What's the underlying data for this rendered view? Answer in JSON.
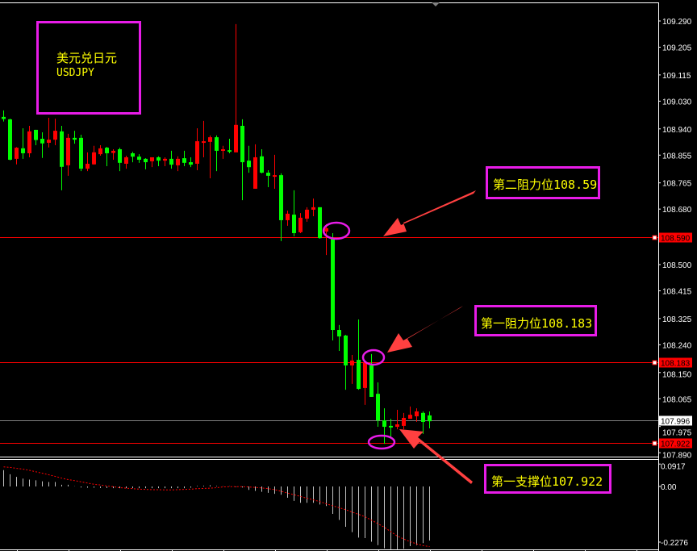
{
  "symbol": {
    "name_cn": "美元兑日元",
    "name": "USDJPY"
  },
  "colors": {
    "bull": "#ff0000",
    "bear": "#00ff00",
    "level_line": "#ff0000",
    "current_line": "#808080",
    "annotation_border": "#e81ce8",
    "annotation_text": "#ffff00",
    "arrow": "#ff4040",
    "axis_text": "#ffffff"
  },
  "price_axis": {
    "ticks": [
      109.29,
      109.205,
      109.115,
      109.03,
      108.94,
      108.855,
      108.765,
      108.68,
      108.5,
      108.415,
      108.325,
      108.24,
      108.15,
      108.065,
      107.975,
      107.89
    ],
    "tick_labels": [
      "109.290",
      "109.205",
      "109.115",
      "109.030",
      "108.940",
      "108.855",
      "108.765",
      "108.680",
      "108.500",
      "108.415",
      "108.325",
      "108.240",
      "108.150",
      "108.065",
      "107.975",
      "107.890"
    ],
    "current_price": "107.996",
    "level_tags": [
      "108.590",
      "108.183",
      "107.922"
    ]
  },
  "levels": [
    {
      "price": 108.59,
      "label": "第二阻力位108.59"
    },
    {
      "price": 108.183,
      "label": "第一阻力位108.183"
    },
    {
      "price": 107.922,
      "label": "第一支撑位107.922"
    }
  ],
  "current": 107.996,
  "candles_ohlc": [
    [
      108.979,
      109.0,
      108.964,
      108.972
    ],
    [
      108.971,
      108.973,
      108.838,
      108.84
    ],
    [
      108.843,
      108.881,
      108.825,
      108.879
    ],
    [
      108.877,
      108.942,
      108.843,
      108.861
    ],
    [
      108.861,
      108.95,
      108.848,
      108.932
    ],
    [
      108.937,
      108.937,
      108.887,
      108.904
    ],
    [
      108.908,
      108.929,
      108.846,
      108.893
    ],
    [
      108.895,
      108.976,
      108.88,
      108.905
    ],
    [
      108.905,
      108.973,
      108.887,
      108.934
    ],
    [
      108.932,
      108.95,
      108.741,
      108.817
    ],
    [
      108.822,
      108.924,
      108.788,
      108.911
    ],
    [
      108.911,
      108.934,
      108.892,
      108.905
    ],
    [
      108.911,
      108.921,
      108.803,
      108.811
    ],
    [
      108.811,
      108.864,
      108.803,
      108.827
    ],
    [
      108.825,
      108.885,
      108.824,
      108.864
    ],
    [
      108.858,
      108.887,
      108.853,
      108.877
    ],
    [
      108.879,
      108.882,
      108.819,
      108.861
    ],
    [
      108.862,
      108.874,
      108.84,
      108.869
    ],
    [
      108.874,
      108.879,
      108.803,
      108.83
    ],
    [
      108.827,
      108.853,
      108.811,
      108.848
    ],
    [
      108.861,
      108.866,
      108.832,
      108.85
    ],
    [
      108.85,
      108.858,
      108.83,
      108.84
    ],
    [
      108.843,
      108.845,
      108.809,
      108.832
    ],
    [
      108.835,
      108.848,
      108.816,
      108.848
    ],
    [
      108.848,
      108.851,
      108.819,
      108.837
    ],
    [
      108.837,
      108.848,
      108.819,
      108.843
    ],
    [
      108.843,
      108.869,
      108.811,
      108.824
    ],
    [
      108.822,
      108.851,
      108.803,
      108.843
    ],
    [
      108.845,
      108.869,
      108.819,
      108.83
    ],
    [
      108.832,
      108.848,
      108.816,
      108.824
    ],
    [
      108.827,
      108.942,
      108.806,
      108.9
    ],
    [
      108.895,
      108.966,
      108.848,
      108.9
    ],
    [
      108.898,
      108.919,
      108.78,
      108.913
    ],
    [
      108.913,
      108.919,
      108.803,
      108.869
    ],
    [
      108.869,
      108.885,
      108.843,
      108.874
    ],
    [
      108.871,
      108.908,
      108.861,
      108.866
    ],
    [
      108.864,
      109.28,
      108.864,
      108.953
    ],
    [
      108.95,
      108.971,
      108.709,
      108.832
    ],
    [
      108.837,
      108.885,
      108.798,
      108.816
    ],
    [
      108.746,
      108.89,
      108.746,
      108.848
    ],
    [
      108.851,
      108.874,
      108.796,
      108.798
    ],
    [
      108.798,
      108.806,
      108.751,
      108.788
    ],
    [
      108.785,
      108.856,
      108.746,
      108.79
    ],
    [
      108.79,
      108.796,
      108.576,
      108.644
    ],
    [
      108.644,
      108.675,
      108.626,
      108.665
    ],
    [
      108.662,
      108.741,
      108.592,
      108.602
    ],
    [
      108.605,
      108.667,
      108.602,
      108.652
    ],
    [
      108.649,
      108.686,
      108.639,
      108.678
    ],
    [
      108.678,
      108.714,
      108.657,
      108.686
    ],
    [
      108.686,
      108.686,
      108.584,
      108.586
    ],
    [
      108.607,
      108.631,
      108.531,
      108.618
    ],
    [
      108.586,
      108.602,
      108.254,
      108.288
    ],
    [
      108.288,
      108.304,
      108.22,
      108.267
    ],
    [
      108.27,
      108.272,
      108.094,
      108.173
    ],
    [
      108.173,
      108.207,
      108.113,
      108.189
    ],
    [
      108.191,
      108.322,
      108.094,
      108.097
    ],
    [
      108.1,
      108.181,
      108.045,
      108.181
    ],
    [
      108.173,
      108.21,
      108.071,
      108.071
    ],
    [
      108.081,
      108.118,
      107.974,
      107.995
    ],
    [
      107.995,
      108.034,
      107.919,
      107.974
    ],
    [
      107.977,
      108.0,
      107.94,
      107.974
    ],
    [
      107.974,
      108.029,
      107.966,
      107.982
    ],
    [
      107.977,
      108.019,
      107.966,
      108.003
    ],
    [
      108.0,
      108.04,
      108.0,
      108.013
    ],
    [
      108.008,
      108.034,
      107.99,
      108.024
    ],
    [
      108.019,
      108.024,
      107.951,
      107.99
    ],
    [
      108.011,
      108.024,
      107.969,
      107.992
    ]
  ],
  "indicator": {
    "tick_labels": [
      "0.0917",
      "0.00",
      "-0.2276"
    ],
    "ticks": [
      0.0917,
      0.0,
      -0.2276
    ],
    "histogram": [
      0.067,
      0.05,
      0.039,
      0.032,
      0.028,
      0.025,
      0.021,
      0.018,
      0.018,
      0.007,
      0.007,
      0.001,
      -0.004,
      -0.005,
      -0.005,
      -0.006,
      -0.006,
      -0.007,
      -0.007,
      -0.007,
      -0.007,
      -0.007,
      -0.007,
      -0.007,
      -0.007,
      -0.007,
      -0.007,
      -0.007,
      -0.007,
      -0.005,
      0.002,
      0.003,
      0.005,
      0.002,
      0.001,
      0.001,
      -0.002,
      -0.004,
      -0.014,
      -0.018,
      -0.022,
      -0.026,
      -0.03,
      -0.034,
      -0.046,
      -0.059,
      -0.067,
      -0.067,
      -0.067,
      -0.074,
      -0.08,
      -0.112,
      -0.137,
      -0.165,
      -0.187,
      -0.209,
      -0.211,
      -0.226,
      -0.24,
      -0.253,
      -0.257,
      -0.257,
      -0.255,
      -0.244,
      -0.24,
      -0.232,
      -0.221
    ],
    "signal": [
      0.08,
      0.078,
      0.074,
      0.071,
      0.066,
      0.06,
      0.054,
      0.048,
      0.041,
      0.034,
      0.028,
      0.024,
      0.019,
      0.014,
      0.009,
      0.006,
      0.002,
      -0.001,
      -0.005,
      -0.007,
      -0.009,
      -0.011,
      -0.012,
      -0.013,
      -0.013,
      -0.014,
      -0.014,
      -0.013,
      -0.012,
      -0.011,
      -0.009,
      -0.008,
      -0.007,
      -0.005,
      -0.002,
      -0.001,
      -0.001,
      -0.001,
      -0.002,
      -0.004,
      -0.006,
      -0.009,
      -0.013,
      -0.02,
      -0.027,
      -0.034,
      -0.041,
      -0.048,
      -0.055,
      -0.062,
      -0.071,
      -0.079,
      -0.087,
      -0.095,
      -0.105,
      -0.114,
      -0.124,
      -0.138,
      -0.152,
      -0.167,
      -0.185,
      -0.203,
      -0.215,
      -0.226,
      -0.235,
      -0.242,
      -0.246
    ]
  }
}
